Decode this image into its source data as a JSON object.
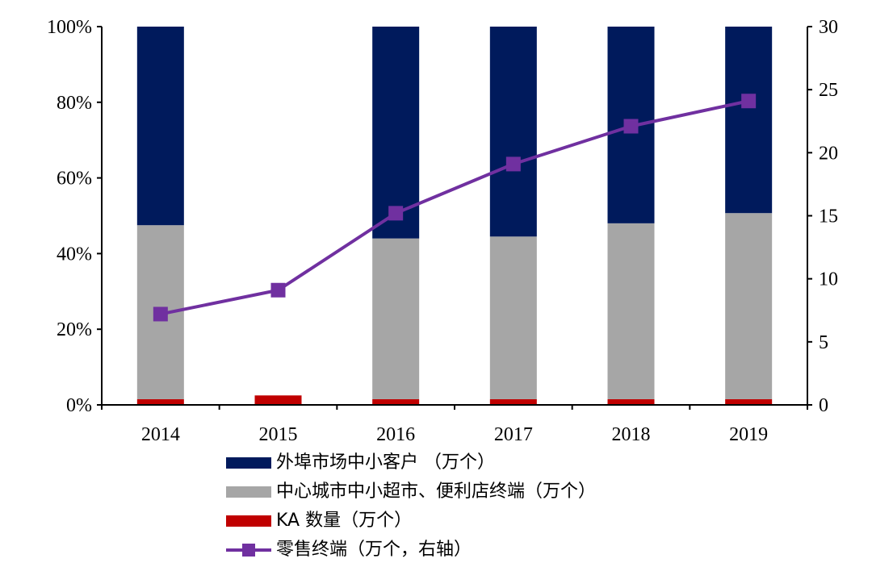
{
  "chart_data": {
    "type": "bar",
    "stacked": true,
    "categories": [
      "2014",
      "2015",
      "2016",
      "2017",
      "2018",
      "2019"
    ],
    "series": [
      {
        "name": "KA 数量（万个）",
        "kind": "bar",
        "axis": "left",
        "color": "#c00000",
        "values": [
          1.5,
          2.5,
          1.5,
          1.5,
          1.5,
          1.5
        ]
      },
      {
        "name": "中心城市中小超市、便利店终端（万个）",
        "kind": "bar",
        "axis": "left",
        "color": "#a6a6a6",
        "values": [
          46,
          0,
          42.5,
          43,
          46.5,
          49.2
        ]
      },
      {
        "name": "外埠市场中小客户 （万个）",
        "kind": "bar",
        "axis": "left",
        "color": "#001a5c",
        "values": [
          52.5,
          0,
          56,
          55.5,
          52,
          49.3
        ]
      },
      {
        "name": "零售终端（万个，右轴）",
        "kind": "line",
        "axis": "right",
        "color": "#7030a0",
        "values": [
          7.2,
          9.1,
          15.2,
          19.1,
          22.1,
          24.1
        ]
      }
    ],
    "yleft": {
      "min": 0,
      "max": 100,
      "ticks": [
        "0%",
        "20%",
        "40%",
        "60%",
        "80%",
        "100%"
      ]
    },
    "yright": {
      "min": 0,
      "max": 30,
      "ticks": [
        "0",
        "5",
        "10",
        "15",
        "20",
        "25",
        "30"
      ]
    },
    "legend": "bottom"
  }
}
